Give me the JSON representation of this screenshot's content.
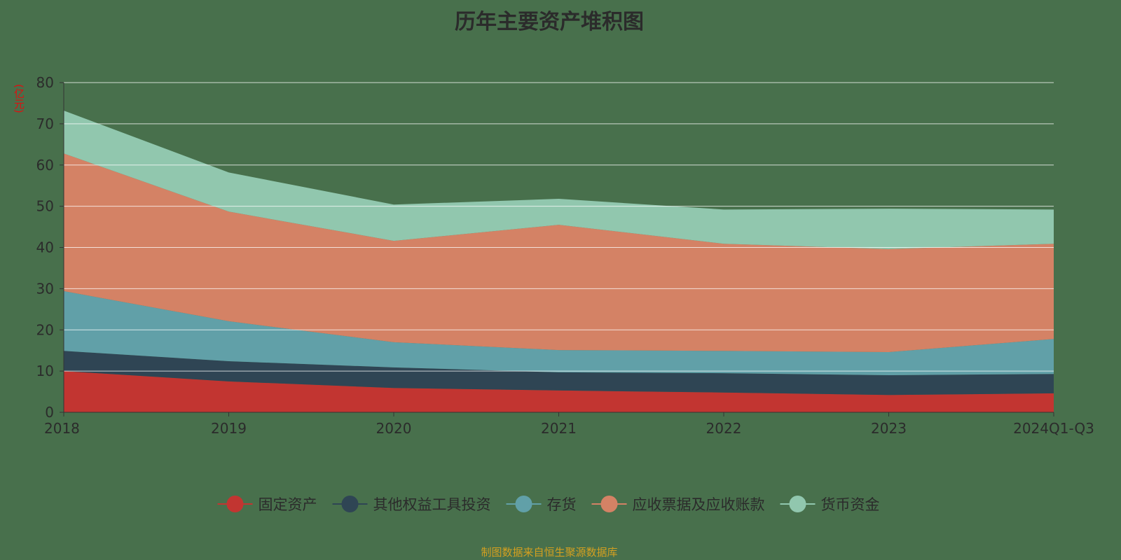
{
  "title": "历年主要资产堆积图",
  "source": "制图数据来自恒生聚源数据库",
  "chart_data": {
    "type": "area",
    "stacked": true,
    "title": "历年主要资产堆积图",
    "ylabel": "(亿元)",
    "ylim": [
      0,
      80
    ],
    "yticks": [
      0,
      10,
      20,
      30,
      40,
      50,
      60,
      70,
      80
    ],
    "grid": true,
    "legend_position": "bottom",
    "categories": [
      "2018",
      "2019",
      "2020",
      "2021",
      "2022",
      "2023",
      "2024Q1-Q3"
    ],
    "series": [
      {
        "name": "固定资产",
        "color": "#c23531",
        "values": [
          10.0,
          7.5,
          5.9,
          5.3,
          4.8,
          4.2,
          4.6
        ]
      },
      {
        "name": "其他权益工具投资",
        "color": "#2f4554",
        "values": [
          4.9,
          4.9,
          5.0,
          4.4,
          4.7,
          4.8,
          4.7
        ]
      },
      {
        "name": "存货",
        "color": "#61a0a8",
        "values": [
          14.5,
          9.7,
          6.1,
          5.4,
          5.4,
          5.6,
          8.5
        ]
      },
      {
        "name": "应收票据及应收账款",
        "color": "#d48265",
        "values": [
          33.4,
          26.6,
          24.6,
          30.4,
          26.0,
          25.0,
          23.1
        ]
      },
      {
        "name": "货币资金",
        "color": "#91c7ae",
        "values": [
          10.4,
          9.5,
          8.8,
          6.3,
          8.3,
          9.8,
          8.3
        ]
      }
    ]
  }
}
